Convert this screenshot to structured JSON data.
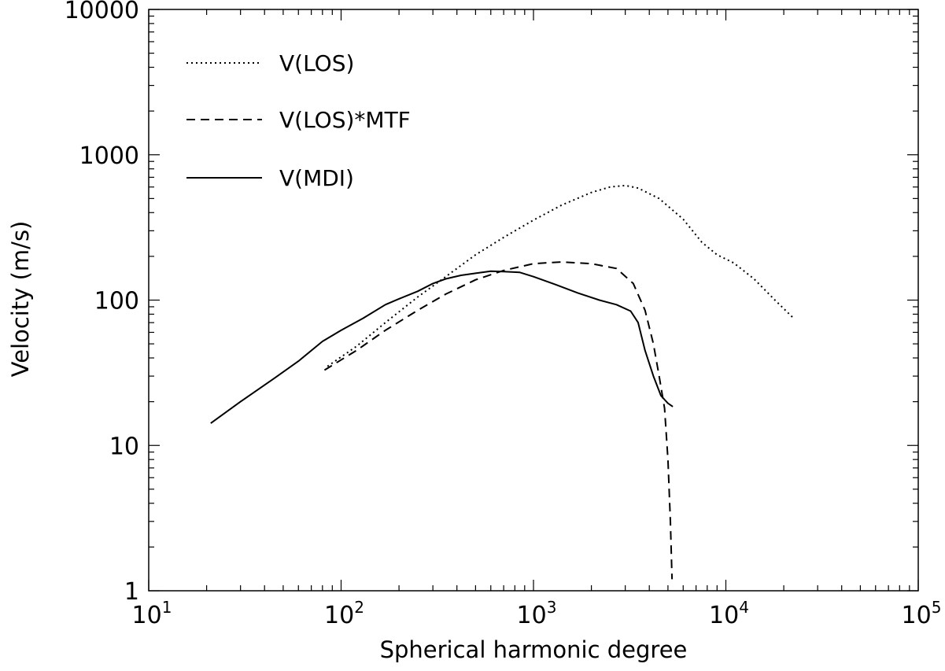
{
  "chart_data": {
    "type": "line",
    "title": "",
    "xlabel": "Spherical harmonic degree",
    "ylabel": "Velocity (m/s)",
    "x_scale": "log",
    "y_scale": "log",
    "xlim": [
      10,
      100000
    ],
    "ylim": [
      1,
      10000
    ],
    "grid": false,
    "legend_position": "top-left",
    "x_ticks": [
      {
        "value": 10,
        "base": "10",
        "exp": "1"
      },
      {
        "value": 100,
        "base": "10",
        "exp": "2"
      },
      {
        "value": 1000,
        "base": "10",
        "exp": "3"
      },
      {
        "value": 10000,
        "base": "10",
        "exp": "4"
      },
      {
        "value": 100000,
        "base": "10",
        "exp": "5"
      }
    ],
    "y_ticks": [
      {
        "value": 1,
        "label": "1"
      },
      {
        "value": 10,
        "label": "10"
      },
      {
        "value": 100,
        "label": "100"
      },
      {
        "value": 1000,
        "label": "1000"
      },
      {
        "value": 10000,
        "label": "10000"
      }
    ],
    "series": [
      {
        "name": "V(LOS)",
        "style": "dotted",
        "color": "#000000",
        "points": [
          [
            85,
            35
          ],
          [
            120,
            48
          ],
          [
            170,
            70
          ],
          [
            250,
            105
          ],
          [
            350,
            145
          ],
          [
            500,
            205
          ],
          [
            700,
            270
          ],
          [
            1000,
            355
          ],
          [
            1400,
            450
          ],
          [
            2000,
            550
          ],
          [
            2500,
            600
          ],
          [
            3000,
            615
          ],
          [
            3500,
            590
          ],
          [
            4500,
            500
          ],
          [
            6000,
            360
          ],
          [
            7500,
            250
          ],
          [
            9000,
            205
          ],
          [
            11000,
            180
          ],
          [
            14000,
            140
          ],
          [
            18000,
            100
          ],
          [
            22500,
            75
          ]
        ]
      },
      {
        "name": "V(LOS)*MTF",
        "style": "dashed",
        "color": "#000000",
        "points": [
          [
            82,
            33
          ],
          [
            120,
            45
          ],
          [
            170,
            62
          ],
          [
            250,
            85
          ],
          [
            350,
            110
          ],
          [
            500,
            138
          ],
          [
            700,
            160
          ],
          [
            1000,
            178
          ],
          [
            1400,
            183
          ],
          [
            2000,
            178
          ],
          [
            2700,
            165
          ],
          [
            3300,
            130
          ],
          [
            3800,
            85
          ],
          [
            4200,
            50
          ],
          [
            4500,
            30
          ],
          [
            4800,
            18
          ],
          [
            5000,
            8
          ],
          [
            5150,
            3
          ],
          [
            5250,
            1.2
          ]
        ]
      },
      {
        "name": "V(MDI)",
        "style": "solid",
        "color": "#000000",
        "points": [
          [
            21,
            14.2
          ],
          [
            30,
            20
          ],
          [
            45,
            29
          ],
          [
            60,
            38
          ],
          [
            80,
            52
          ],
          [
            100,
            62
          ],
          [
            130,
            75
          ],
          [
            170,
            93
          ],
          [
            200,
            102
          ],
          [
            250,
            115
          ],
          [
            300,
            130
          ],
          [
            350,
            140
          ],
          [
            420,
            148
          ],
          [
            500,
            153
          ],
          [
            600,
            158
          ],
          [
            700,
            157
          ],
          [
            850,
            155
          ],
          [
            1000,
            145
          ],
          [
            1300,
            128
          ],
          [
            1700,
            112
          ],
          [
            2200,
            100
          ],
          [
            2700,
            93
          ],
          [
            3200,
            84
          ],
          [
            3500,
            70
          ],
          [
            3800,
            45
          ],
          [
            4200,
            30
          ],
          [
            4600,
            22
          ],
          [
            5000,
            19.5
          ],
          [
            5300,
            18.5
          ]
        ]
      }
    ]
  }
}
